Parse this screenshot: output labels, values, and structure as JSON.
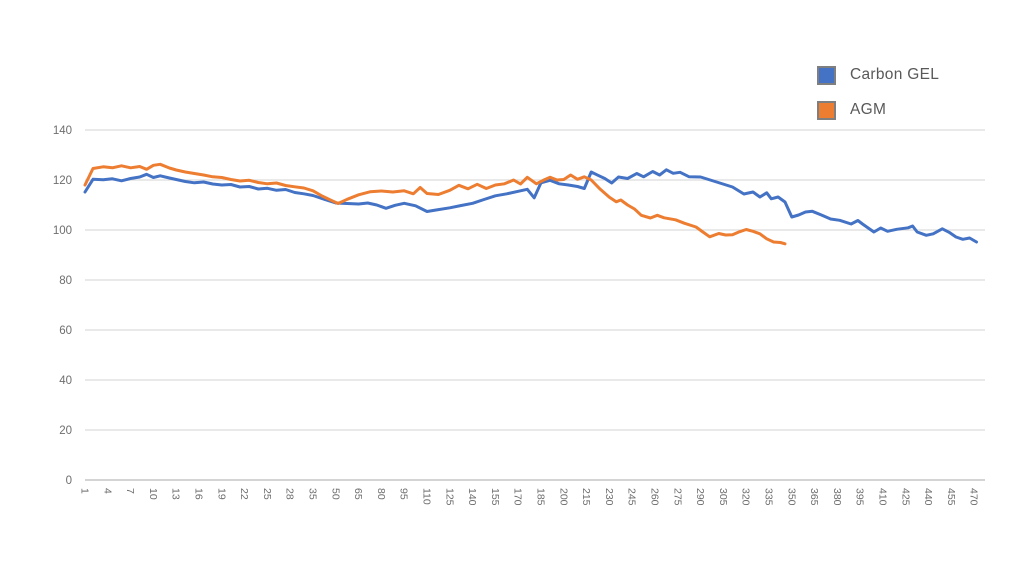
{
  "chart_data": {
    "type": "line",
    "title": "",
    "legend": {
      "position": "top-right",
      "entries": [
        "Carbon GEL",
        "AGM"
      ]
    },
    "y_axis": {
      "min": 0,
      "max": 140,
      "ticks": [
        0,
        20,
        40,
        60,
        80,
        100,
        120,
        140
      ]
    },
    "x_axis": {
      "tick_labels": [
        "1",
        "4",
        "7",
        "10",
        "13",
        "16",
        "19",
        "22",
        "25",
        "28",
        "35",
        "50",
        "65",
        "80",
        "95",
        "110",
        "125",
        "140",
        "155",
        "170",
        "185",
        "200",
        "215",
        "230",
        "245",
        "260",
        "275",
        "290",
        "305",
        "320",
        "335",
        "350",
        "365",
        "380",
        "395",
        "410",
        "425",
        "440",
        "455",
        "470"
      ],
      "label_rotation_deg": 90
    },
    "grid": "horizontal",
    "colors": {
      "grid": "#dcdcdc",
      "axis_line": "#c6c6c6",
      "axis_text": "#6e6e6e",
      "legend_text": "#595959",
      "swatch_border": "#7f7f7f",
      "background": "#ffffff"
    },
    "series": [
      {
        "name": "Carbon GEL",
        "color": "#4472C4",
        "x_mode": "tick_index",
        "points": [
          [
            0,
            115.2
          ],
          [
            0.35,
            120.3
          ],
          [
            0.8,
            120.1
          ],
          [
            1.2,
            120.5
          ],
          [
            1.6,
            119.7
          ],
          [
            2.0,
            120.6
          ],
          [
            2.4,
            121.2
          ],
          [
            2.7,
            122.3
          ],
          [
            3.0,
            121.0
          ],
          [
            3.3,
            121.7
          ],
          [
            3.7,
            120.8
          ],
          [
            4.0,
            120.2
          ],
          [
            4.4,
            119.4
          ],
          [
            4.8,
            118.9
          ],
          [
            5.2,
            119.2
          ],
          [
            5.6,
            118.4
          ],
          [
            6.0,
            118.0
          ],
          [
            6.4,
            118.2
          ],
          [
            6.8,
            117.2
          ],
          [
            7.2,
            117.4
          ],
          [
            7.6,
            116.4
          ],
          [
            8.0,
            116.7
          ],
          [
            8.4,
            115.9
          ],
          [
            8.8,
            116.2
          ],
          [
            9.2,
            115.0
          ],
          [
            9.6,
            114.5
          ],
          [
            10.0,
            113.8
          ],
          [
            10.5,
            112.3
          ],
          [
            11.0,
            110.8
          ],
          [
            11.5,
            110.6
          ],
          [
            12.0,
            110.4
          ],
          [
            12.4,
            110.8
          ],
          [
            12.8,
            110.0
          ],
          [
            13.2,
            108.7
          ],
          [
            13.6,
            109.9
          ],
          [
            14.0,
            110.7
          ],
          [
            14.5,
            109.7
          ],
          [
            15.0,
            107.4
          ],
          [
            15.4,
            108.0
          ],
          [
            16.0,
            108.9
          ],
          [
            16.5,
            109.8
          ],
          [
            17.0,
            110.7
          ],
          [
            17.5,
            112.2
          ],
          [
            18.0,
            113.7
          ],
          [
            18.5,
            114.5
          ],
          [
            19.0,
            115.5
          ],
          [
            19.4,
            116.3
          ],
          [
            19.7,
            112.9
          ],
          [
            20.0,
            118.9
          ],
          [
            20.4,
            119.9
          ],
          [
            20.8,
            118.5
          ],
          [
            21.2,
            118.0
          ],
          [
            21.6,
            117.4
          ],
          [
            21.9,
            116.6
          ],
          [
            22.2,
            123.2
          ],
          [
            22.5,
            121.9
          ],
          [
            22.8,
            120.6
          ],
          [
            23.1,
            118.8
          ],
          [
            23.4,
            121.2
          ],
          [
            23.8,
            120.6
          ],
          [
            24.2,
            122.6
          ],
          [
            24.5,
            121.3
          ],
          [
            24.9,
            123.4
          ],
          [
            25.2,
            122.0
          ],
          [
            25.5,
            124.1
          ],
          [
            25.8,
            122.7
          ],
          [
            26.1,
            123.1
          ],
          [
            26.5,
            121.3
          ],
          [
            27.0,
            121.2
          ],
          [
            27.7,
            119.2
          ],
          [
            28.4,
            117.2
          ],
          [
            28.9,
            114.4
          ],
          [
            29.3,
            115.2
          ],
          [
            29.6,
            113.2
          ],
          [
            29.9,
            114.9
          ],
          [
            30.1,
            112.5
          ],
          [
            30.4,
            113.2
          ],
          [
            30.7,
            111.2
          ],
          [
            31.0,
            105.2
          ],
          [
            31.3,
            106.0
          ],
          [
            31.6,
            107.2
          ],
          [
            31.9,
            107.5
          ],
          [
            32.3,
            106.0
          ],
          [
            32.7,
            104.4
          ],
          [
            33.1,
            103.9
          ],
          [
            33.6,
            102.4
          ],
          [
            33.9,
            103.8
          ],
          [
            34.1,
            102.4
          ],
          [
            34.6,
            99.2
          ],
          [
            34.9,
            100.8
          ],
          [
            35.2,
            99.5
          ],
          [
            35.6,
            100.3
          ],
          [
            36.1,
            100.9
          ],
          [
            36.3,
            101.6
          ],
          [
            36.5,
            99.2
          ],
          [
            36.9,
            97.9
          ],
          [
            37.2,
            98.5
          ],
          [
            37.6,
            100.5
          ],
          [
            37.9,
            99.1
          ],
          [
            38.2,
            97.2
          ],
          [
            38.5,
            96.3
          ],
          [
            38.8,
            96.8
          ],
          [
            39.1,
            95.2
          ]
        ]
      },
      {
        "name": "AGM",
        "color": "#ED7D31",
        "x_mode": "tick_index",
        "points": [
          [
            0,
            118.0
          ],
          [
            0.35,
            124.6
          ],
          [
            0.8,
            125.3
          ],
          [
            1.2,
            124.9
          ],
          [
            1.6,
            125.7
          ],
          [
            2.0,
            124.9
          ],
          [
            2.4,
            125.4
          ],
          [
            2.7,
            124.3
          ],
          [
            3.0,
            125.9
          ],
          [
            3.3,
            126.3
          ],
          [
            3.7,
            124.8
          ],
          [
            4.0,
            124.0
          ],
          [
            4.4,
            123.2
          ],
          [
            4.8,
            122.6
          ],
          [
            5.2,
            122.0
          ],
          [
            5.6,
            121.3
          ],
          [
            6.0,
            121.0
          ],
          [
            6.4,
            120.2
          ],
          [
            6.8,
            119.6
          ],
          [
            7.2,
            119.9
          ],
          [
            7.6,
            119.0
          ],
          [
            8.0,
            118.5
          ],
          [
            8.4,
            118.8
          ],
          [
            8.8,
            117.8
          ],
          [
            9.2,
            117.3
          ],
          [
            9.6,
            116.8
          ],
          [
            10.0,
            115.7
          ],
          [
            10.4,
            113.6
          ],
          [
            10.8,
            111.9
          ],
          [
            11.1,
            110.6
          ],
          [
            11.5,
            112.3
          ],
          [
            12.0,
            114.1
          ],
          [
            12.5,
            115.3
          ],
          [
            13.0,
            115.6
          ],
          [
            13.5,
            115.2
          ],
          [
            14.0,
            115.7
          ],
          [
            14.4,
            114.5
          ],
          [
            14.7,
            117.0
          ],
          [
            15.0,
            114.6
          ],
          [
            15.5,
            114.2
          ],
          [
            16.0,
            115.9
          ],
          [
            16.4,
            117.9
          ],
          [
            16.8,
            116.5
          ],
          [
            17.2,
            118.3
          ],
          [
            17.6,
            116.6
          ],
          [
            18.0,
            118.0
          ],
          [
            18.4,
            118.5
          ],
          [
            18.8,
            120.0
          ],
          [
            19.1,
            118.4
          ],
          [
            19.4,
            121.1
          ],
          [
            19.8,
            118.5
          ],
          [
            20.1,
            119.9
          ],
          [
            20.4,
            121.1
          ],
          [
            20.7,
            120.0
          ],
          [
            21.0,
            120.2
          ],
          [
            21.3,
            122.0
          ],
          [
            21.6,
            120.3
          ],
          [
            21.9,
            121.3
          ],
          [
            22.2,
            120.0
          ],
          [
            22.6,
            116.3
          ],
          [
            23.0,
            113.1
          ],
          [
            23.3,
            111.3
          ],
          [
            23.5,
            112.0
          ],
          [
            23.8,
            110.0
          ],
          [
            24.1,
            108.4
          ],
          [
            24.4,
            105.9
          ],
          [
            24.8,
            104.8
          ],
          [
            25.1,
            105.9
          ],
          [
            25.4,
            104.9
          ],
          [
            25.9,
            104.1
          ],
          [
            26.3,
            102.7
          ],
          [
            26.8,
            101.2
          ],
          [
            27.1,
            99.2
          ],
          [
            27.4,
            97.3
          ],
          [
            27.8,
            98.6
          ],
          [
            28.1,
            98.0
          ],
          [
            28.4,
            98.1
          ],
          [
            28.7,
            99.3
          ],
          [
            29.0,
            100.2
          ],
          [
            29.3,
            99.5
          ],
          [
            29.6,
            98.5
          ],
          [
            29.9,
            96.5
          ],
          [
            30.2,
            95.2
          ],
          [
            30.5,
            95.0
          ],
          [
            30.7,
            94.5
          ]
        ]
      }
    ]
  }
}
